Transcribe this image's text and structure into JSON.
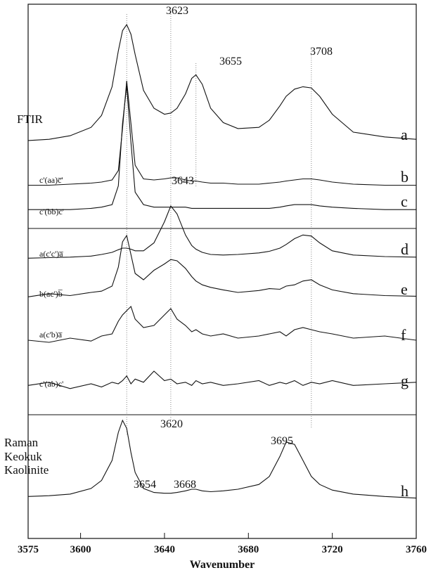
{
  "chart_data": {
    "type": "line",
    "x_label": "Wavenumber",
    "xlim": [
      3575,
      3760
    ],
    "xticks": [
      3575,
      3600,
      3640,
      3680,
      3720,
      3760
    ],
    "x": [
      3575,
      3585,
      3595,
      3605,
      3610,
      3615,
      3618,
      3620,
      3622,
      3624,
      3626,
      3630,
      3635,
      3640,
      3643,
      3646,
      3650,
      3653,
      3655,
      3658,
      3662,
      3668,
      3675,
      3685,
      3690,
      3695,
      3698,
      3702,
      3706,
      3710,
      3714,
      3720,
      3730,
      3745,
      3760
    ],
    "reference_lines": [
      3622,
      3643,
      3655,
      3710
    ],
    "annotations": [
      "3623",
      "3655",
      "3708",
      "3643",
      "3620",
      "3654",
      "3668",
      "3695"
    ],
    "series": [
      {
        "name": "a",
        "label": "FTIR",
        "color": "#111111",
        "values": [
          3,
          4,
          7,
          14,
          24,
          48,
          78,
          95,
          100,
          92,
          75,
          45,
          30,
          25,
          26,
          30,
          42,
          55,
          58,
          50,
          30,
          18,
          13,
          14,
          20,
          32,
          40,
          46,
          48,
          47,
          40,
          25,
          10,
          6,
          4
        ]
      },
      {
        "name": "b",
        "label": "c'(aa)c̅'",
        "color": "#111111",
        "values": [
          1,
          1,
          2,
          3,
          4,
          6,
          15,
          55,
          100,
          60,
          20,
          7,
          6,
          7,
          8,
          8,
          6,
          5,
          5,
          4,
          3,
          3,
          2,
          2,
          3,
          4,
          5,
          6,
          7,
          7,
          6,
          4,
          2,
          1,
          1
        ]
      },
      {
        "name": "c",
        "label": "c'(bb)c̅'",
        "color": "#111111",
        "values": [
          1,
          1,
          1,
          2,
          3,
          5,
          20,
          70,
          100,
          55,
          15,
          5,
          3,
          3,
          3,
          3,
          3,
          2,
          2,
          2,
          2,
          2,
          2,
          2,
          2,
          3,
          4,
          5,
          5,
          5,
          4,
          3,
          2,
          1,
          1
        ]
      },
      {
        "name": "d",
        "label": "a(c'c')a̅",
        "color": "#111111",
        "values": [
          1,
          2,
          3,
          5,
          8,
          12,
          17,
          20,
          20,
          18,
          15,
          15,
          30,
          70,
          100,
          85,
          45,
          25,
          18,
          12,
          8,
          7,
          8,
          11,
          14,
          20,
          27,
          38,
          45,
          43,
          30,
          15,
          7,
          4,
          3
        ]
      },
      {
        "name": "e",
        "label": "b(ac')b̅",
        "color": "#111111",
        "values": [
          3,
          8,
          5,
          10,
          12,
          20,
          50,
          90,
          100,
          70,
          40,
          30,
          45,
          55,
          62,
          60,
          48,
          35,
          28,
          22,
          18,
          14,
          10,
          13,
          16,
          15,
          20,
          22,
          28,
          30,
          22,
          14,
          8,
          5,
          4
        ]
      },
      {
        "name": "f",
        "label": "a(c'b)a̅",
        "color": "#111111",
        "values": [
          10,
          5,
          15,
          8,
          20,
          25,
          55,
          70,
          80,
          90,
          60,
          40,
          45,
          70,
          85,
          60,
          45,
          30,
          35,
          25,
          20,
          25,
          15,
          20,
          25,
          30,
          20,
          35,
          40,
          35,
          30,
          25,
          15,
          20,
          10
        ]
      },
      {
        "name": "g",
        "label": "c'(ab)c'",
        "color": "#111111",
        "values": [
          15,
          25,
          5,
          20,
          10,
          25,
          20,
          30,
          45,
          20,
          35,
          25,
          60,
          30,
          35,
          20,
          25,
          15,
          30,
          20,
          25,
          15,
          20,
          30,
          15,
          25,
          20,
          30,
          15,
          25,
          20,
          30,
          15,
          20,
          25
        ]
      },
      {
        "name": "h",
        "label": "Raman Keokuk Kaolinite",
        "color": "#111111",
        "values": [
          5,
          6,
          8,
          15,
          25,
          50,
          85,
          100,
          90,
          60,
          35,
          15,
          10,
          9,
          9,
          10,
          12,
          14,
          14,
          12,
          11,
          12,
          14,
          20,
          30,
          55,
          73,
          70,
          50,
          30,
          20,
          13,
          8,
          5,
          3
        ]
      }
    ]
  }
}
